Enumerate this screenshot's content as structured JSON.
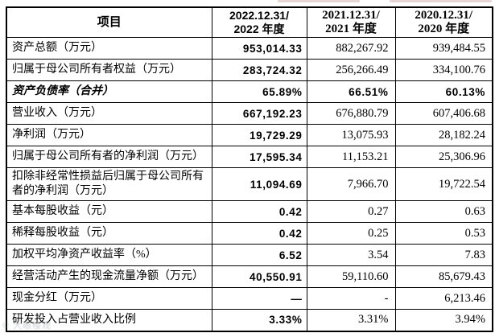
{
  "table": {
    "header": {
      "item": "项目",
      "periods": [
        {
          "l1": "2022.12.31/",
          "l2": "2022 年度"
        },
        {
          "l1": "2021.12.31/",
          "l2": "2021 年度"
        },
        {
          "l1": "2020.12.31/",
          "l2": "2020 年度"
        }
      ]
    },
    "rows": [
      {
        "label": "资产总额（万元）",
        "y2022": "953,014.33",
        "y2021": "882,267.92",
        "y2020": "939,484.55"
      },
      {
        "label": "归属于母公司所有者权益（万元）",
        "y2022": "283,724.32",
        "y2021": "256,266.49",
        "y2020": "334,100.76"
      },
      {
        "label": "资产负债率（合并）",
        "y2022": "65.89%",
        "y2021": "66.51%",
        "y2020": "60.13%",
        "emphasis": true
      },
      {
        "label": "营业收入（万元）",
        "y2022": "667,192.23",
        "y2021": "676,880.79",
        "y2020": "607,406.68"
      },
      {
        "label": "净利润（万元）",
        "y2022": "19,729.29",
        "y2021": "13,075.93",
        "y2020": "28,182.24"
      },
      {
        "label": "归属于母公司所有者的净利润（万元）",
        "y2022": "17,595.34",
        "y2021": "11,153.21",
        "y2020": "25,306.96"
      },
      {
        "label": "扣除非经常性损益后归属于母公司所有者的净利润（万元）",
        "y2022": "11,094.69",
        "y2021": "7,966.70",
        "y2020": "19,722.54"
      },
      {
        "label": "基本每股收益（元）",
        "y2022": "0.42",
        "y2021": "0.27",
        "y2020": "0.63"
      },
      {
        "label": "稀释每股收益（元）",
        "y2022": "0.42",
        "y2021": "0.25",
        "y2020": "0.53"
      },
      {
        "label": "加权平均净资产收益率（%）",
        "y2022": "6.52",
        "y2021": "3.54",
        "y2020": "7.83"
      },
      {
        "label": "经营活动产生的现金流量净额（万元）",
        "y2022": "40,550.91",
        "y2021": "59,110.60",
        "y2020": "85,679.43"
      },
      {
        "label": "现金分红（万元）",
        "y2022": "—",
        "y2021": "-",
        "y2020": "6,213.46"
      },
      {
        "label": "研发投入占营业收入比例",
        "y2022": "3.33%",
        "y2021": "3.31%",
        "y2020": "3.94%"
      }
    ]
  },
  "watermark": "© 大眼楼观",
  "colors": {
    "border": "#000000",
    "text": "#000000",
    "watermark": "#8f979e",
    "artifact": "#d8c0c0"
  }
}
